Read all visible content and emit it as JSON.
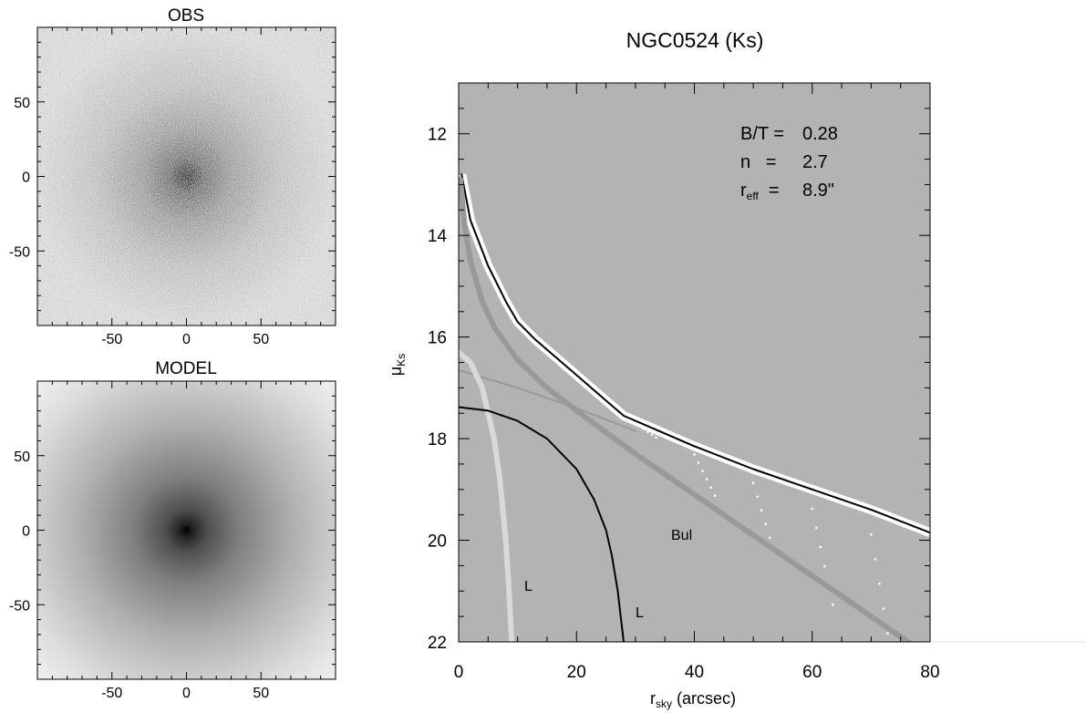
{
  "chart_data": [
    {
      "type": "heatmap",
      "title": "OBS",
      "xlim": [
        -100,
        100
      ],
      "ylim": [
        -100,
        100
      ],
      "xticks": [
        -50,
        0,
        50
      ],
      "yticks": [
        50,
        0,
        -50
      ],
      "colormap": "grayscale, dark center",
      "noise": "high",
      "center": [
        0,
        0
      ]
    },
    {
      "type": "heatmap",
      "title": "MODEL",
      "xlim": [
        -100,
        100
      ],
      "ylim": [
        -100,
        100
      ],
      "xticks": [
        -50,
        0,
        50
      ],
      "yticks": [
        50,
        0,
        -50
      ],
      "colormap": "grayscale, dark center",
      "noise": "none",
      "center": [
        0,
        0
      ]
    },
    {
      "type": "line",
      "title": "NGC0524 (Ks)",
      "xlabel": {
        "main": "r",
        "sub": "sky",
        "rest": " (arcsec)"
      },
      "ylabel": {
        "main": "μ",
        "sub": "Ks"
      },
      "xlim": [
        0,
        80
      ],
      "ylim": [
        11,
        22
      ],
      "y_inverted": true,
      "xticks": [
        0,
        20,
        40,
        60,
        80
      ],
      "yticks": [
        12,
        14,
        16,
        18,
        20,
        22
      ],
      "background": "#b3b3b3",
      "annotations": {
        "bt": {
          "label": "B/T =",
          "value": "0.28"
        },
        "n": {
          "label": "n   =",
          "value": "2.7"
        },
        "reff": {
          "main": "r",
          "sub": "eff",
          "label": "  =",
          "value": "8.9\""
        }
      },
      "series": [
        {
          "color": "#ffffff",
          "style": "scatter",
          "x": [
            0.5,
            2,
            5,
            8,
            10,
            13,
            16,
            20,
            24,
            28,
            30,
            40,
            50,
            60,
            70,
            80
          ],
          "y": [
            12.8,
            13.7,
            14.6,
            15.3,
            15.7,
            16.05,
            16.35,
            16.75,
            17.15,
            17.55,
            17.65,
            18.15,
            18.6,
            19.0,
            19.4,
            19.85
          ]
        },
        {
          "color": "#000000",
          "style": "line",
          "x": [
            0.5,
            2,
            5,
            8,
            10,
            13,
            16,
            20,
            24,
            28,
            30,
            40,
            50,
            60,
            70,
            80
          ],
          "y": [
            12.8,
            13.7,
            14.6,
            15.3,
            15.7,
            16.05,
            16.35,
            16.75,
            17.15,
            17.55,
            17.65,
            18.15,
            18.6,
            19.0,
            19.4,
            19.85
          ]
        },
        {
          "name": "Bul",
          "color": "#999999",
          "style": "thick",
          "x": [
            0.3,
            1,
            2,
            4,
            6,
            10,
            15,
            20,
            30,
            40,
            50,
            60,
            70,
            80
          ],
          "y": [
            12.9,
            13.8,
            14.5,
            15.3,
            15.8,
            16.45,
            17.0,
            17.45,
            18.3,
            19.1,
            19.9,
            20.7,
            21.5,
            22.3
          ]
        },
        {
          "color": "#999999",
          "style": "thin",
          "x": [
            0,
            10,
            20,
            30
          ],
          "y": [
            16.65,
            17.0,
            17.4,
            17.85
          ]
        },
        {
          "name": "L",
          "color": "#d9d9d9",
          "style": "thick",
          "x": [
            0,
            2,
            4,
            6,
            7,
            8,
            8.5,
            9
          ],
          "y": [
            16.3,
            16.5,
            17.0,
            18.0,
            18.8,
            20.0,
            20.9,
            22.0
          ]
        },
        {
          "name": "L",
          "color": "#000000",
          "style": "line",
          "x": [
            0,
            5,
            10,
            15,
            20,
            23,
            25,
            26,
            27,
            27.5,
            28
          ],
          "y": [
            17.38,
            17.45,
            17.65,
            18.0,
            18.6,
            19.2,
            19.8,
            20.3,
            21.0,
            21.5,
            22.0
          ]
        }
      ],
      "labels": [
        "Bul",
        "L",
        "L"
      ]
    }
  ]
}
